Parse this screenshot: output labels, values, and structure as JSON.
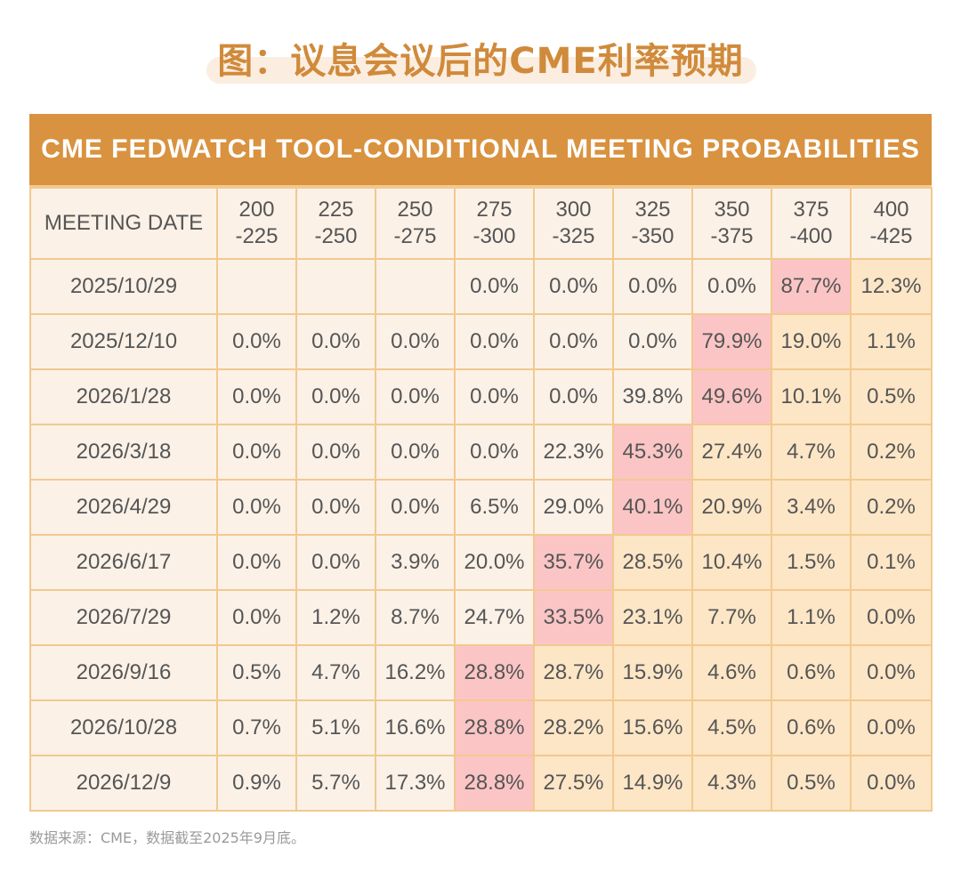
{
  "title": "图：议息会议后的CME利率预期",
  "chart_data": {
    "type": "table",
    "title": "CME FEDWATCH TOOL-CONDITIONAL MEETING PROBABILITIES",
    "header_first": "MEETING DATE",
    "columns": [
      {
        "top": "200",
        "bottom": "-225"
      },
      {
        "top": "225",
        "bottom": "-250"
      },
      {
        "top": "250",
        "bottom": "-275"
      },
      {
        "top": "275",
        "bottom": "-300"
      },
      {
        "top": "300",
        "bottom": "-325"
      },
      {
        "top": "325",
        "bottom": "-350"
      },
      {
        "top": "350",
        "bottom": "-375"
      },
      {
        "top": "375",
        "bottom": "-400"
      },
      {
        "top": "400",
        "bottom": "-425"
      }
    ],
    "rows": [
      {
        "date": "2025/10/29",
        "values": [
          "",
          "",
          "",
          "0.0%",
          "0.0%",
          "0.0%",
          "0.0%",
          "87.7%",
          "12.3%"
        ],
        "highlight": 7,
        "tint_from": 8
      },
      {
        "date": "2025/12/10",
        "values": [
          "0.0%",
          "0.0%",
          "0.0%",
          "0.0%",
          "0.0%",
          "0.0%",
          "79.9%",
          "19.0%",
          "1.1%"
        ],
        "highlight": 6,
        "tint_from": 7
      },
      {
        "date": "2026/1/28",
        "values": [
          "0.0%",
          "0.0%",
          "0.0%",
          "0.0%",
          "0.0%",
          "39.8%",
          "49.6%",
          "10.1%",
          "0.5%"
        ],
        "highlight": 6,
        "tint_from": 7
      },
      {
        "date": "2026/3/18",
        "values": [
          "0.0%",
          "0.0%",
          "0.0%",
          "0.0%",
          "22.3%",
          "45.3%",
          "27.4%",
          "4.7%",
          "0.2%"
        ],
        "highlight": 5,
        "tint_from": 6
      },
      {
        "date": "2026/4/29",
        "values": [
          "0.0%",
          "0.0%",
          "0.0%",
          "6.5%",
          "29.0%",
          "40.1%",
          "20.9%",
          "3.4%",
          "0.2%"
        ],
        "highlight": 5,
        "tint_from": 6
      },
      {
        "date": "2026/6/17",
        "values": [
          "0.0%",
          "0.0%",
          "3.9%",
          "20.0%",
          "35.7%",
          "28.5%",
          "10.4%",
          "1.5%",
          "0.1%"
        ],
        "highlight": 4,
        "tint_from": 5
      },
      {
        "date": "2026/7/29",
        "values": [
          "0.0%",
          "1.2%",
          "8.7%",
          "24.7%",
          "33.5%",
          "23.1%",
          "7.7%",
          "1.1%",
          "0.0%"
        ],
        "highlight": 4,
        "tint_from": 5
      },
      {
        "date": "2026/9/16",
        "values": [
          "0.5%",
          "4.7%",
          "16.2%",
          "28.8%",
          "28.7%",
          "15.9%",
          "4.6%",
          "0.6%",
          "0.0%"
        ],
        "highlight": 3,
        "tint_from": 4
      },
      {
        "date": "2026/10/28",
        "values": [
          "0.7%",
          "5.1%",
          "16.6%",
          "28.8%",
          "28.2%",
          "15.6%",
          "4.5%",
          "0.6%",
          "0.0%"
        ],
        "highlight": 3,
        "tint_from": 4
      },
      {
        "date": "2026/12/9",
        "values": [
          "0.9%",
          "5.7%",
          "17.3%",
          "28.8%",
          "27.5%",
          "14.9%",
          "4.3%",
          "0.5%",
          "0.0%"
        ],
        "highlight": 3,
        "tint_from": 4
      }
    ]
  },
  "colors": {
    "title": "#d08a3b",
    "banner": "#d9923f",
    "border": "#f2c98f",
    "cell_default": "#fbf1e7",
    "cell_right_tint": "#fde6c6",
    "cell_highlight": "#fbc5c5"
  },
  "footnote": "数据来源：CME，数据截至2025年9月底。"
}
